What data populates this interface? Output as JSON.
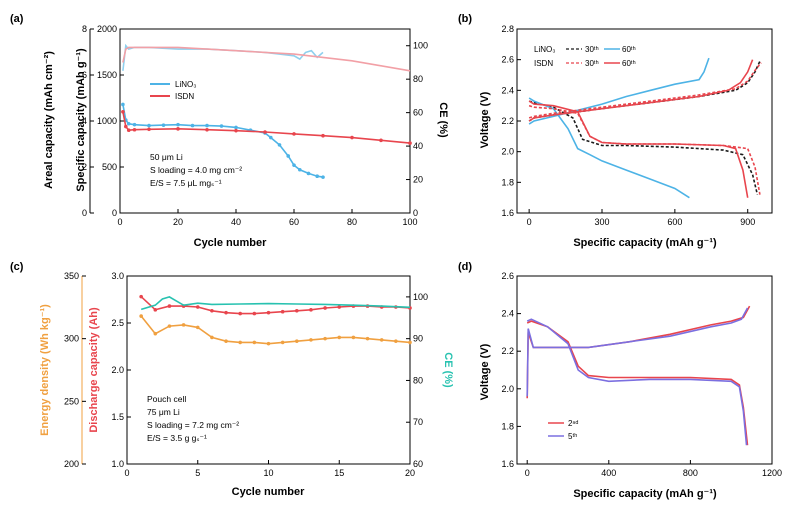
{
  "chart_data": [
    {
      "panel": "(a)",
      "type": "line",
      "xlabel": "Cycle number",
      "ylabel_left_outer": "Areal capacity (mAh cm⁻²)",
      "ylabel_left": "Specific capacity (mAh g⁻¹)",
      "ylabel_right": "CE (%)",
      "xlim": [
        0,
        100
      ],
      "xticks": [
        0,
        20,
        40,
        60,
        80,
        100
      ],
      "ylim_left": [
        0,
        2000
      ],
      "yticks_left": [
        0,
        500,
        1000,
        1500,
        2000
      ],
      "ylim_left_outer": [
        0,
        8
      ],
      "yticks_left_outer": [
        0,
        2,
        4,
        6,
        8
      ],
      "ylim_right": [
        0,
        110
      ],
      "yticks_right": [
        0,
        20,
        40,
        60,
        80,
        100
      ],
      "annotation": [
        "50 μm Li",
        "S loading = 4.0 mg cm⁻²",
        "E/S = 7.5 μL mgₛ⁻¹"
      ],
      "series": [
        {
          "name": "LiNO₃",
          "color": "#4db3e6",
          "axis": "left",
          "x": [
            1,
            2,
            3,
            5,
            10,
            15,
            20,
            25,
            30,
            35,
            40,
            45,
            50,
            52,
            55,
            58,
            60,
            62,
            65,
            68,
            70
          ],
          "y": [
            1180,
            1010,
            970,
            960,
            950,
            955,
            960,
            950,
            950,
            945,
            930,
            900,
            870,
            820,
            740,
            620,
            520,
            470,
            430,
            400,
            390
          ]
        },
        {
          "name": "ISDN",
          "color": "#e8454d",
          "axis": "left",
          "x": [
            1,
            2,
            3,
            5,
            10,
            20,
            30,
            40,
            50,
            60,
            70,
            80,
            90,
            100
          ],
          "y": [
            1100,
            940,
            900,
            905,
            910,
            915,
            905,
            895,
            880,
            860,
            840,
            820,
            790,
            760
          ]
        },
        {
          "name": "LiNO₃ CE",
          "color": "#8fd0ee",
          "axis": "right",
          "x": [
            1,
            2,
            3,
            5,
            10,
            20,
            30,
            40,
            50,
            55,
            60,
            62,
            64,
            66,
            68,
            70
          ],
          "y": [
            85,
            100,
            98,
            99,
            99,
            98,
            98,
            97,
            96,
            95,
            94,
            92,
            96,
            97,
            93,
            96
          ]
        },
        {
          "name": "ISDN CE",
          "color": "#f2a0a6",
          "axis": "right",
          "x": [
            1,
            2,
            3,
            5,
            10,
            20,
            30,
            40,
            50,
            60,
            70,
            80,
            90,
            100
          ],
          "y": [
            90,
            98,
            99,
            99,
            99,
            99,
            98,
            97,
            96,
            95,
            93,
            91,
            88,
            85
          ]
        }
      ]
    },
    {
      "panel": "(b)",
      "type": "line",
      "xlabel": "Specific capacity (mAh g⁻¹)",
      "ylabel": "Voltage (V)",
      "xlim": [
        -50,
        1000
      ],
      "xticks": [
        0,
        300,
        600,
        900
      ],
      "ylim": [
        1.6,
        2.8
      ],
      "yticks": [
        1.6,
        1.8,
        2.0,
        2.2,
        2.4,
        2.6,
        2.8
      ],
      "legend_labels": {
        "row1": "LiNO₃",
        "row2": "ISDN",
        "c30": "30ᵗʰ",
        "c60": "60ᵗʰ"
      },
      "series": [
        {
          "name": "LiNO₃ 30th discharge",
          "color": "#1a1a1a",
          "dash": true,
          "x": [
            0,
            20,
            100,
            180,
            220,
            300,
            400,
            600,
            800,
            880,
            920,
            940
          ],
          "y": [
            2.33,
            2.32,
            2.29,
            2.22,
            2.08,
            2.04,
            2.04,
            2.03,
            2.01,
            1.98,
            1.85,
            1.72
          ]
        },
        {
          "name": "LiNO₃ 30th charge",
          "color": "#1a1a1a",
          "dash": true,
          "x": [
            0,
            20,
            100,
            300,
            500,
            700,
            850,
            900,
            930,
            950
          ],
          "y": [
            2.2,
            2.22,
            2.24,
            2.28,
            2.32,
            2.36,
            2.4,
            2.45,
            2.52,
            2.59
          ]
        },
        {
          "name": "LiNO₃ 60th discharge",
          "color": "#4db3e6",
          "x": [
            0,
            20,
            100,
            160,
            200,
            250,
            300,
            400,
            500,
            600,
            660
          ],
          "y": [
            2.35,
            2.33,
            2.28,
            2.15,
            2.02,
            1.98,
            1.94,
            1.88,
            1.82,
            1.76,
            1.7
          ]
        },
        {
          "name": "LiNO₃ 60th charge",
          "color": "#4db3e6",
          "x": [
            0,
            20,
            100,
            200,
            300,
            400,
            500,
            600,
            700,
            720,
            740
          ],
          "y": [
            2.18,
            2.2,
            2.23,
            2.27,
            2.31,
            2.36,
            2.4,
            2.44,
            2.47,
            2.52,
            2.61
          ]
        },
        {
          "name": "ISDN 30th discharge",
          "color": "#e8454d",
          "dash": true,
          "x": [
            0,
            20,
            100,
            200,
            250,
            300,
            400,
            600,
            800,
            900,
            930,
            950
          ],
          "y": [
            2.3,
            2.29,
            2.28,
            2.25,
            2.1,
            2.06,
            2.05,
            2.05,
            2.04,
            2.02,
            1.9,
            1.72
          ]
        },
        {
          "name": "ISDN 30th charge",
          "color": "#e8454d",
          "dash": true,
          "x": [
            0,
            20,
            100,
            300,
            500,
            700,
            850,
            900,
            930,
            955
          ],
          "y": [
            2.22,
            2.23,
            2.25,
            2.29,
            2.33,
            2.37,
            2.41,
            2.46,
            2.53,
            2.58
          ]
        },
        {
          "name": "ISDN 60th discharge",
          "color": "#e8454d",
          "x": [
            0,
            20,
            100,
            200,
            250,
            300,
            400,
            600,
            800,
            850,
            880,
            900
          ],
          "y": [
            2.33,
            2.31,
            2.3,
            2.26,
            2.1,
            2.06,
            2.05,
            2.05,
            2.04,
            2.02,
            1.88,
            1.7
          ]
        },
        {
          "name": "ISDN 60th charge",
          "color": "#e8454d",
          "x": [
            0,
            20,
            100,
            300,
            500,
            700,
            820,
            870,
            900,
            920
          ],
          "y": [
            2.2,
            2.22,
            2.24,
            2.28,
            2.32,
            2.36,
            2.4,
            2.45,
            2.52,
            2.6
          ]
        }
      ]
    },
    {
      "panel": "(c)",
      "type": "line",
      "xlabel": "Cycle number",
      "ylabel_left_outer": "Energy density (Wh kg⁻¹)",
      "ylabel_left": "Discharge capacity (Ah)",
      "ylabel_right": "CE (%)",
      "xlim": [
        0,
        20
      ],
      "xticks": [
        0,
        5,
        10,
        15,
        20
      ],
      "ylim_left": [
        1.0,
        3.0
      ],
      "yticks_left": [
        1.0,
        1.5,
        2.0,
        2.5,
        3.0
      ],
      "ylim_left_outer": [
        200,
        350
      ],
      "yticks_left_outer": [
        200,
        250,
        300,
        350
      ],
      "ylim_right": [
        60,
        105
      ],
      "yticks_right": [
        60,
        70,
        80,
        90,
        100
      ],
      "annotation": [
        "Pouch cell",
        "75 μm Li",
        "S loading = 7.2 mg cm⁻²",
        "E/S = 3.5 g gₛ⁻¹"
      ],
      "series": [
        {
          "name": "Energy density",
          "color": "#f0a040",
          "axis": "left_outer",
          "x": [
            1,
            2,
            3,
            4,
            5,
            6,
            7,
            8,
            9,
            10,
            11,
            12,
            13,
            14,
            15,
            16,
            17,
            18,
            19,
            20
          ],
          "y": [
            318,
            304,
            310,
            311,
            309,
            301,
            298,
            297,
            297,
            296,
            297,
            298,
            299,
            300,
            301,
            301,
            300,
            299,
            298,
            297
          ]
        },
        {
          "name": "Discharge capacity",
          "color": "#e8454d",
          "axis": "left",
          "x": [
            1,
            2,
            3,
            4,
            5,
            6,
            7,
            8,
            9,
            10,
            11,
            12,
            13,
            14,
            15,
            16,
            17,
            18,
            19,
            20
          ],
          "y": [
            2.78,
            2.64,
            2.68,
            2.68,
            2.67,
            2.63,
            2.61,
            2.6,
            2.6,
            2.61,
            2.62,
            2.63,
            2.64,
            2.66,
            2.67,
            2.68,
            2.68,
            2.67,
            2.67,
            2.66
          ]
        },
        {
          "name": "CE",
          "color": "#28c2b0",
          "axis": "right",
          "x": [
            1,
            2,
            2.5,
            3,
            3.5,
            4,
            5,
            6,
            8,
            10,
            12,
            14,
            16,
            18,
            20
          ],
          "y": [
            97,
            98,
            99.5,
            100,
            99,
            98,
            98.5,
            98.2,
            98.3,
            98.4,
            98.3,
            98.2,
            98.0,
            97.8,
            97.5
          ]
        }
      ]
    },
    {
      "panel": "(d)",
      "type": "line",
      "xlabel": "Specific capacity (mAh g⁻¹)",
      "ylabel": "Voltage (V)",
      "xlim": [
        -50,
        1200
      ],
      "xticks": [
        0,
        400,
        800,
        1200
      ],
      "ylim": [
        1.6,
        2.6
      ],
      "yticks": [
        1.6,
        1.8,
        2.0,
        2.2,
        2.4,
        2.6
      ],
      "legend_labels": [
        "2ⁿᵈ",
        "5ᵗʰ"
      ],
      "series": [
        {
          "name": "2nd discharge",
          "color": "#e8454d",
          "x": [
            0,
            20,
            100,
            200,
            250,
            300,
            400,
            600,
            800,
            1000,
            1040,
            1060,
            1080
          ],
          "y": [
            2.35,
            2.36,
            2.33,
            2.25,
            2.12,
            2.07,
            2.06,
            2.06,
            2.06,
            2.05,
            2.02,
            1.9,
            1.7
          ]
        },
        {
          "name": "2nd charge",
          "color": "#e8454d",
          "x": [
            0,
            5,
            30,
            100,
            300,
            500,
            700,
            900,
            1000,
            1060,
            1090
          ],
          "y": [
            1.95,
            2.3,
            2.22,
            2.22,
            2.22,
            2.25,
            2.29,
            2.34,
            2.36,
            2.38,
            2.44
          ]
        },
        {
          "name": "5th discharge",
          "color": "#7b6fe0",
          "x": [
            0,
            20,
            100,
            200,
            250,
            300,
            400,
            600,
            800,
            1000,
            1040,
            1060,
            1075
          ],
          "y": [
            2.36,
            2.37,
            2.33,
            2.24,
            2.1,
            2.06,
            2.04,
            2.05,
            2.05,
            2.04,
            2.01,
            1.88,
            1.7
          ]
        },
        {
          "name": "5th charge",
          "color": "#7b6fe0",
          "x": [
            0,
            5,
            30,
            100,
            300,
            500,
            700,
            900,
            1000,
            1050,
            1080
          ],
          "y": [
            1.96,
            2.32,
            2.22,
            2.22,
            2.22,
            2.25,
            2.28,
            2.33,
            2.35,
            2.37,
            2.43
          ]
        }
      ]
    }
  ]
}
